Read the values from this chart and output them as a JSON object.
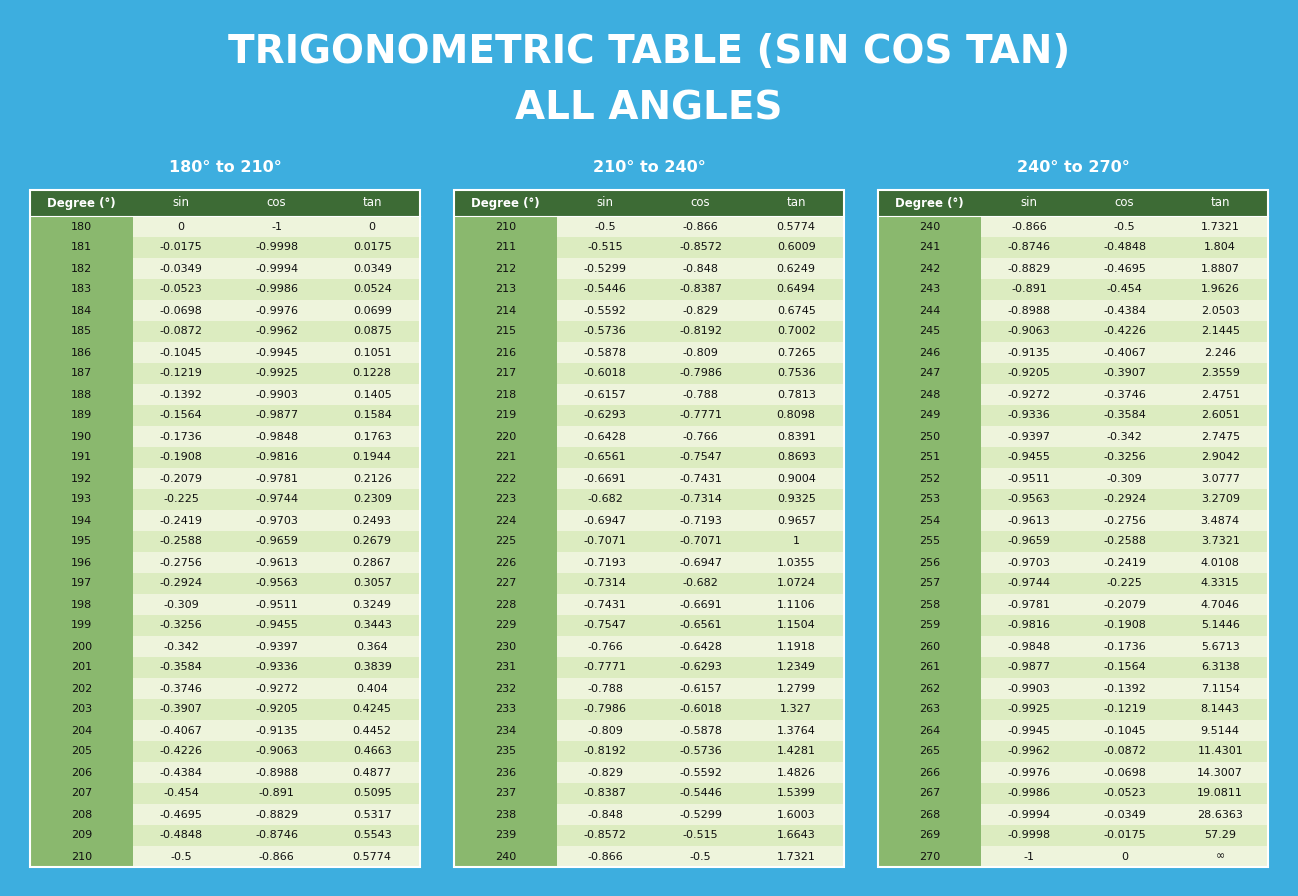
{
  "title_line1": "TRIGONOMETRIC TABLE (SIN COS TAN)",
  "title_line2": "ALL ANGLES",
  "bg_color": "#3DAEDF",
  "header_bg": "#3D6B35",
  "degree_col_bg": "#8AB86E",
  "row_bg_light": "#EEF4DC",
  "row_bg_dark": "#DCECC0",
  "text_dark": "#111111",
  "text_white": "#FFFFFF",
  "table1_title": "180° to 210°",
  "table2_title": "210° to 240°",
  "table3_title": "240° to 270°",
  "col_headers": [
    "Degree (°)",
    "sin",
    "cos",
    "tan"
  ],
  "table1": [
    [
      180,
      "0",
      "-1",
      "0"
    ],
    [
      181,
      "-0.0175",
      "-0.9998",
      "0.0175"
    ],
    [
      182,
      "-0.0349",
      "-0.9994",
      "0.0349"
    ],
    [
      183,
      "-0.0523",
      "-0.9986",
      "0.0524"
    ],
    [
      184,
      "-0.0698",
      "-0.9976",
      "0.0699"
    ],
    [
      185,
      "-0.0872",
      "-0.9962",
      "0.0875"
    ],
    [
      186,
      "-0.1045",
      "-0.9945",
      "0.1051"
    ],
    [
      187,
      "-0.1219",
      "-0.9925",
      "0.1228"
    ],
    [
      188,
      "-0.1392",
      "-0.9903",
      "0.1405"
    ],
    [
      189,
      "-0.1564",
      "-0.9877",
      "0.1584"
    ],
    [
      190,
      "-0.1736",
      "-0.9848",
      "0.1763"
    ],
    [
      191,
      "-0.1908",
      "-0.9816",
      "0.1944"
    ],
    [
      192,
      "-0.2079",
      "-0.9781",
      "0.2126"
    ],
    [
      193,
      "-0.225",
      "-0.9744",
      "0.2309"
    ],
    [
      194,
      "-0.2419",
      "-0.9703",
      "0.2493"
    ],
    [
      195,
      "-0.2588",
      "-0.9659",
      "0.2679"
    ],
    [
      196,
      "-0.2756",
      "-0.9613",
      "0.2867"
    ],
    [
      197,
      "-0.2924",
      "-0.9563",
      "0.3057"
    ],
    [
      198,
      "-0.309",
      "-0.9511",
      "0.3249"
    ],
    [
      199,
      "-0.3256",
      "-0.9455",
      "0.3443"
    ],
    [
      200,
      "-0.342",
      "-0.9397",
      "0.364"
    ],
    [
      201,
      "-0.3584",
      "-0.9336",
      "0.3839"
    ],
    [
      202,
      "-0.3746",
      "-0.9272",
      "0.404"
    ],
    [
      203,
      "-0.3907",
      "-0.9205",
      "0.4245"
    ],
    [
      204,
      "-0.4067",
      "-0.9135",
      "0.4452"
    ],
    [
      205,
      "-0.4226",
      "-0.9063",
      "0.4663"
    ],
    [
      206,
      "-0.4384",
      "-0.8988",
      "0.4877"
    ],
    [
      207,
      "-0.454",
      "-0.891",
      "0.5095"
    ],
    [
      208,
      "-0.4695",
      "-0.8829",
      "0.5317"
    ],
    [
      209,
      "-0.4848",
      "-0.8746",
      "0.5543"
    ],
    [
      210,
      "-0.5",
      "-0.866",
      "0.5774"
    ]
  ],
  "table2": [
    [
      210,
      "-0.5",
      "-0.866",
      "0.5774"
    ],
    [
      211,
      "-0.515",
      "-0.8572",
      "0.6009"
    ],
    [
      212,
      "-0.5299",
      "-0.848",
      "0.6249"
    ],
    [
      213,
      "-0.5446",
      "-0.8387",
      "0.6494"
    ],
    [
      214,
      "-0.5592",
      "-0.829",
      "0.6745"
    ],
    [
      215,
      "-0.5736",
      "-0.8192",
      "0.7002"
    ],
    [
      216,
      "-0.5878",
      "-0.809",
      "0.7265"
    ],
    [
      217,
      "-0.6018",
      "-0.7986",
      "0.7536"
    ],
    [
      218,
      "-0.6157",
      "-0.788",
      "0.7813"
    ],
    [
      219,
      "-0.6293",
      "-0.7771",
      "0.8098"
    ],
    [
      220,
      "-0.6428",
      "-0.766",
      "0.8391"
    ],
    [
      221,
      "-0.6561",
      "-0.7547",
      "0.8693"
    ],
    [
      222,
      "-0.6691",
      "-0.7431",
      "0.9004"
    ],
    [
      223,
      "-0.682",
      "-0.7314",
      "0.9325"
    ],
    [
      224,
      "-0.6947",
      "-0.7193",
      "0.9657"
    ],
    [
      225,
      "-0.7071",
      "-0.7071",
      "1"
    ],
    [
      226,
      "-0.7193",
      "-0.6947",
      "1.0355"
    ],
    [
      227,
      "-0.7314",
      "-0.682",
      "1.0724"
    ],
    [
      228,
      "-0.7431",
      "-0.6691",
      "1.1106"
    ],
    [
      229,
      "-0.7547",
      "-0.6561",
      "1.1504"
    ],
    [
      230,
      "-0.766",
      "-0.6428",
      "1.1918"
    ],
    [
      231,
      "-0.7771",
      "-0.6293",
      "1.2349"
    ],
    [
      232,
      "-0.788",
      "-0.6157",
      "1.2799"
    ],
    [
      233,
      "-0.7986",
      "-0.6018",
      "1.327"
    ],
    [
      234,
      "-0.809",
      "-0.5878",
      "1.3764"
    ],
    [
      235,
      "-0.8192",
      "-0.5736",
      "1.4281"
    ],
    [
      236,
      "-0.829",
      "-0.5592",
      "1.4826"
    ],
    [
      237,
      "-0.8387",
      "-0.5446",
      "1.5399"
    ],
    [
      238,
      "-0.848",
      "-0.5299",
      "1.6003"
    ],
    [
      239,
      "-0.8572",
      "-0.515",
      "1.6643"
    ],
    [
      240,
      "-0.866",
      "-0.5",
      "1.7321"
    ]
  ],
  "table3": [
    [
      240,
      "-0.866",
      "-0.5",
      "1.7321"
    ],
    [
      241,
      "-0.8746",
      "-0.4848",
      "1.804"
    ],
    [
      242,
      "-0.8829",
      "-0.4695",
      "1.8807"
    ],
    [
      243,
      "-0.891",
      "-0.454",
      "1.9626"
    ],
    [
      244,
      "-0.8988",
      "-0.4384",
      "2.0503"
    ],
    [
      245,
      "-0.9063",
      "-0.4226",
      "2.1445"
    ],
    [
      246,
      "-0.9135",
      "-0.4067",
      "2.246"
    ],
    [
      247,
      "-0.9205",
      "-0.3907",
      "2.3559"
    ],
    [
      248,
      "-0.9272",
      "-0.3746",
      "2.4751"
    ],
    [
      249,
      "-0.9336",
      "-0.3584",
      "2.6051"
    ],
    [
      250,
      "-0.9397",
      "-0.342",
      "2.7475"
    ],
    [
      251,
      "-0.9455",
      "-0.3256",
      "2.9042"
    ],
    [
      252,
      "-0.9511",
      "-0.309",
      "3.0777"
    ],
    [
      253,
      "-0.9563",
      "-0.2924",
      "3.2709"
    ],
    [
      254,
      "-0.9613",
      "-0.2756",
      "3.4874"
    ],
    [
      255,
      "-0.9659",
      "-0.2588",
      "3.7321"
    ],
    [
      256,
      "-0.9703",
      "-0.2419",
      "4.0108"
    ],
    [
      257,
      "-0.9744",
      "-0.225",
      "4.3315"
    ],
    [
      258,
      "-0.9781",
      "-0.2079",
      "4.7046"
    ],
    [
      259,
      "-0.9816",
      "-0.1908",
      "5.1446"
    ],
    [
      260,
      "-0.9848",
      "-0.1736",
      "5.6713"
    ],
    [
      261,
      "-0.9877",
      "-0.1564",
      "6.3138"
    ],
    [
      262,
      "-0.9903",
      "-0.1392",
      "7.1154"
    ],
    [
      263,
      "-0.9925",
      "-0.1219",
      "8.1443"
    ],
    [
      264,
      "-0.9945",
      "-0.1045",
      "9.5144"
    ],
    [
      265,
      "-0.9962",
      "-0.0872",
      "11.4301"
    ],
    [
      266,
      "-0.9976",
      "-0.0698",
      "14.3007"
    ],
    [
      267,
      "-0.9986",
      "-0.0523",
      "19.0811"
    ],
    [
      268,
      "-0.9994",
      "-0.0349",
      "28.6363"
    ],
    [
      269,
      "-0.9998",
      "-0.0175",
      "57.29"
    ],
    [
      270,
      "-1",
      "0",
      "∞"
    ]
  ]
}
